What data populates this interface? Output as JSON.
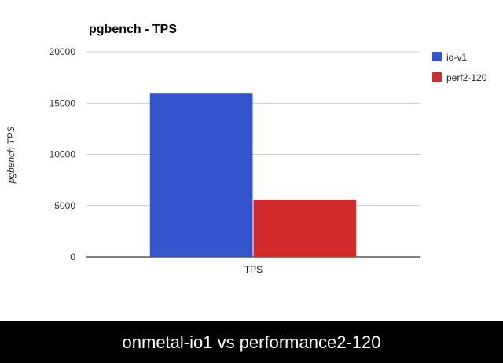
{
  "caption": "onmetal-io1 vs performance2-120",
  "chart_data": {
    "type": "bar",
    "title": "pgbench - TPS",
    "xlabel": "",
    "ylabel": "pgbench TPS",
    "categories": [
      "TPS"
    ],
    "series": [
      {
        "name": "io-v1",
        "color": "#3355cc",
        "values": [
          16000
        ]
      },
      {
        "name": "perf2-120",
        "color": "#d22b2b",
        "values": [
          5600
        ]
      }
    ],
    "ylim": [
      0,
      20000
    ],
    "yticks": [
      0,
      5000,
      10000,
      15000,
      20000
    ],
    "ytick_labels": [
      "0",
      "5000",
      "10000",
      "15000",
      "20000"
    ],
    "grid": true,
    "legend": "right"
  }
}
